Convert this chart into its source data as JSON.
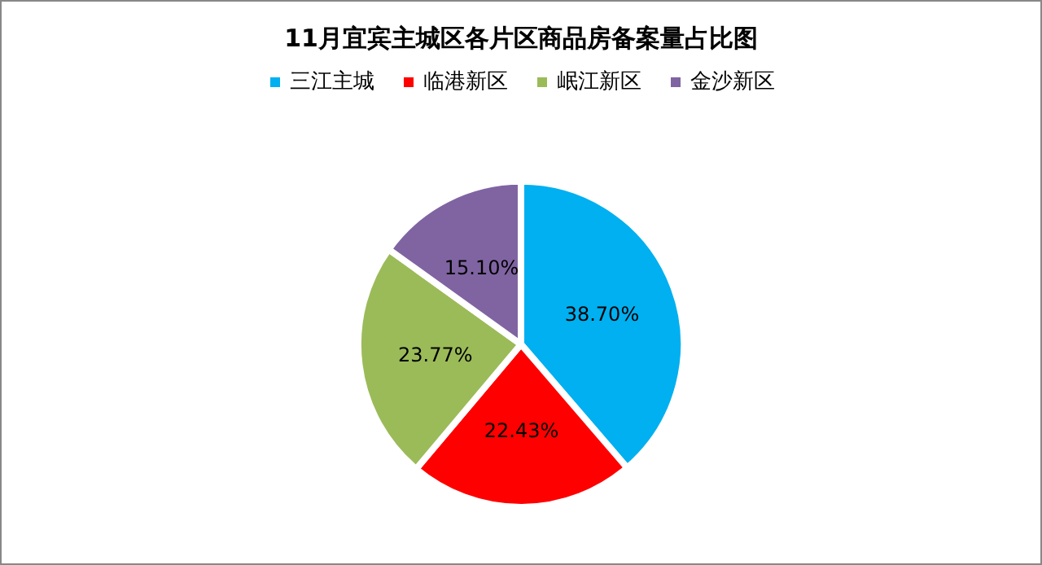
{
  "chart_data": {
    "type": "pie",
    "title": "11月宜宾主城区各片区商品房备案量占比图",
    "categories": [
      "三江主城",
      "临港新区",
      "岷江新区",
      "金沙新区"
    ],
    "values": [
      38.7,
      22.43,
      23.77,
      15.1
    ],
    "colors": [
      "#00b0f0",
      "#ff0000",
      "#9bbb59",
      "#8064a2"
    ],
    "value_labels": [
      "38.70%",
      "22.43%",
      "23.77%",
      "15.10%"
    ],
    "legend": "top"
  }
}
